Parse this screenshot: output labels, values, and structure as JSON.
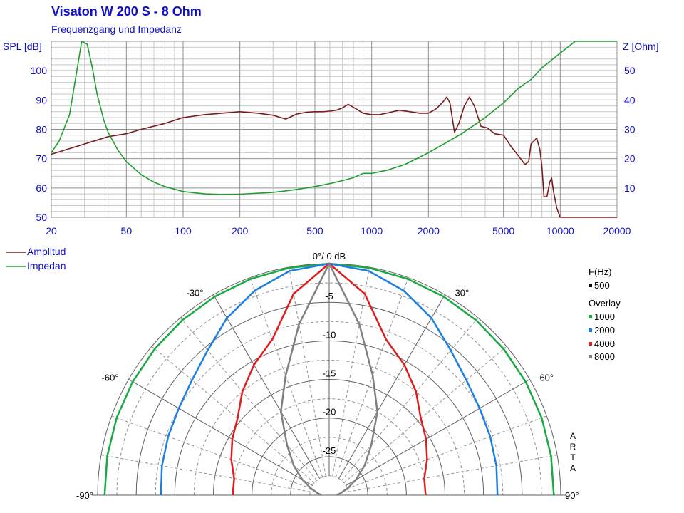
{
  "header": {
    "title": "Visaton W 200 S - 8 Ohm",
    "subtitle": "Frequenzgang und Impedanz"
  },
  "colors": {
    "blue_text": "#1010c8",
    "amplitude": "#7a1c1c",
    "impedance": "#1e9e2e",
    "polar_1000": "#1aaa44",
    "polar_2000": "#1e7fe0",
    "polar_4000": "#e01c1c",
    "polar_8000": "#808080",
    "grid": "#a0a0a0"
  },
  "chart_data": [
    {
      "type": "line",
      "title": "Visaton W 200 S - 8 Ohm",
      "subtitle": "Frequenzgang und Impedanz",
      "xscale": "log",
      "xlim": [
        20,
        20000
      ],
      "x_ticks": [
        "20",
        "50",
        "100",
        "200",
        "500",
        "1000",
        "2000",
        "5000",
        "10000",
        "20000"
      ],
      "y_left": {
        "label": "SPL [dB]",
        "lim": [
          50,
          110
        ],
        "ticks": [
          "50",
          "60",
          "70",
          "80",
          "90",
          "100"
        ]
      },
      "y_right": {
        "label": "Z [Ohm]",
        "lim": [
          0,
          60
        ],
        "ticks": [
          "10",
          "20",
          "30",
          "40",
          "50"
        ]
      },
      "grid": true,
      "legend": {
        "placement": "bottom-left",
        "entries": [
          "Amplitud",
          "Impedan"
        ]
      },
      "series": [
        {
          "name": "Amplitud",
          "axis": "left",
          "x": [
            20,
            30,
            40,
            50,
            60,
            80,
            100,
            130,
            160,
            200,
            250,
            300,
            350,
            400,
            450,
            500,
            550,
            600,
            650,
            700,
            750,
            800,
            850,
            900,
            1000,
            1100,
            1200,
            1400,
            1600,
            1800,
            2000,
            2200,
            2400,
            2500,
            2600,
            2750,
            2900,
            3100,
            3300,
            3500,
            3800,
            4100,
            4500,
            5000,
            5500,
            6000,
            6500,
            6800,
            7000,
            7500,
            7800,
            8000,
            8200,
            8500,
            8800,
            9000,
            9200,
            9600,
            10000,
            11000,
            15000,
            20000
          ],
          "values": [
            71.5,
            75,
            77.5,
            78.5,
            80,
            82,
            84,
            85,
            85.5,
            86,
            85.5,
            84.8,
            83.5,
            85.2,
            85.8,
            86,
            86,
            86.2,
            86.5,
            87.3,
            88.5,
            87.5,
            86.5,
            85.5,
            85,
            85,
            85.5,
            86.5,
            86,
            85.5,
            85.5,
            87,
            89.5,
            91,
            89,
            79,
            82,
            88,
            91,
            88,
            81,
            80.5,
            78.5,
            78,
            74,
            71,
            68,
            69,
            75,
            77,
            73,
            67,
            57,
            57,
            62,
            63.5,
            59,
            53,
            50,
            50,
            50,
            50
          ]
        },
        {
          "name": "Impedan",
          "axis": "right",
          "x": [
            20,
            22,
            25,
            27,
            29,
            31,
            33,
            35,
            38,
            40,
            45,
            50,
            60,
            70,
            80,
            100,
            130,
            160,
            200,
            300,
            400,
            500,
            600,
            700,
            800,
            900,
            1000,
            1200,
            1500,
            2000,
            3000,
            4000,
            5000,
            6000,
            7000,
            8000,
            10000,
            12000,
            15000,
            20000
          ],
          "values": [
            22,
            26,
            35,
            48,
            60,
            59,
            51,
            42,
            33,
            29,
            23,
            19,
            14.5,
            12,
            10.5,
            8.8,
            8,
            7.8,
            7.9,
            8.5,
            9.5,
            10.5,
            11.5,
            12.5,
            13.5,
            15,
            15,
            16,
            18,
            22,
            28.5,
            34,
            39,
            44,
            47,
            51,
            56,
            60,
            60,
            60
          ]
        }
      ]
    },
    {
      "type": "polar",
      "title": "0°/ 0 dB",
      "radial_labels": [
        "-5",
        "-10",
        "-15",
        "-20",
        "-25"
      ],
      "radial_lim": [
        -30,
        0
      ],
      "angle_labels": [
        "-90°",
        "-60°",
        "-30°",
        "30°",
        "60°",
        "90°"
      ],
      "legend": {
        "header": "F(Hz)",
        "primary": {
          "name": "500",
          "color": "#000000"
        },
        "overlay_label": "Overlay",
        "entries": [
          {
            "name": "1000",
            "color": "#1aaa44"
          },
          {
            "name": "2000",
            "color": "#1e7fe0"
          },
          {
            "name": "4000",
            "color": "#e01c1c"
          },
          {
            "name": "8000",
            "color": "#808080"
          }
        ]
      },
      "watermark": "ARTA",
      "series": [
        {
          "name": "1000",
          "angles": [
            0,
            10,
            20,
            30,
            40,
            50,
            60,
            70,
            80,
            90
          ],
          "values": [
            0,
            -0.1,
            -0.2,
            -0.3,
            -0.4,
            -0.5,
            -0.6,
            -0.7,
            -0.8,
            -0.9
          ]
        },
        {
          "name": "2000",
          "angles": [
            0,
            10,
            20,
            30,
            40,
            50,
            60,
            70,
            80,
            90
          ],
          "values": [
            0,
            -0.5,
            -1.8,
            -3.5,
            -5.5,
            -6.8,
            -7.5,
            -7.8,
            -8.0,
            -8.2
          ]
        },
        {
          "name": "4000",
          "angles": [
            0,
            10,
            20,
            30,
            40,
            50,
            60,
            70,
            80,
            90
          ],
          "values": [
            0,
            -3.5,
            -8.5,
            -10.5,
            -12.5,
            -14.5,
            -15.5,
            -16.5,
            -17.5,
            -17.5
          ]
        },
        {
          "name": "8000",
          "angles": [
            0,
            10,
            20,
            30,
            40,
            50,
            60,
            70,
            80,
            90
          ],
          "values": [
            0,
            -7.5,
            -13.5,
            -17.5,
            -21.5,
            -24,
            -26,
            -27.5,
            -28.5,
            -29
          ]
        }
      ]
    }
  ]
}
